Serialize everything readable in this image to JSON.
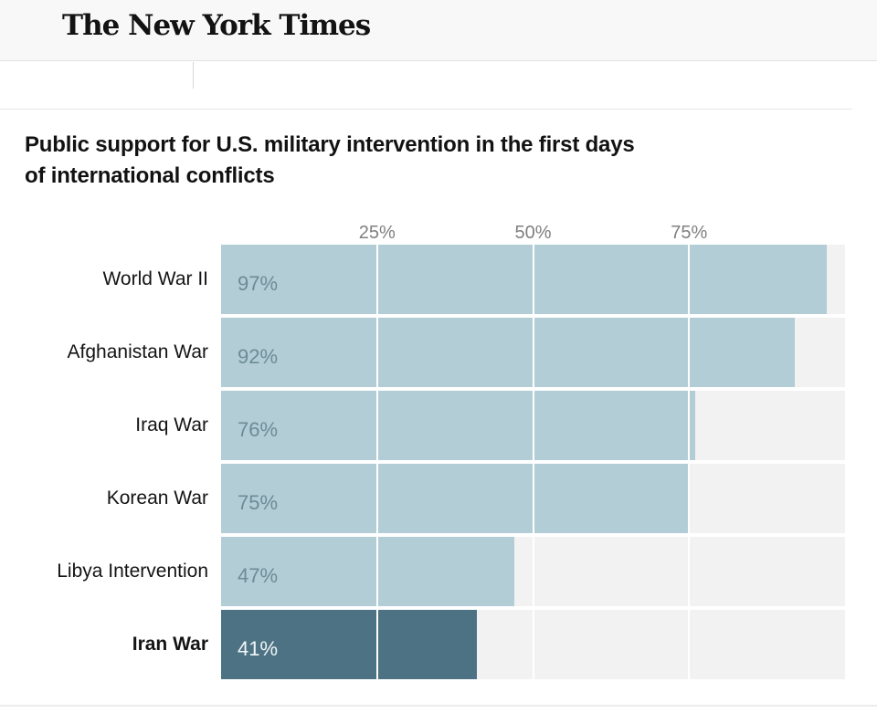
{
  "header": {
    "logo_text": "The New York Times"
  },
  "title": {
    "line1": "Public support for U.S. military intervention in the first days",
    "line2": "of international conflicts"
  },
  "chart_data": {
    "type": "bar",
    "orientation": "horizontal",
    "title": "Public support for U.S. military intervention in the first days of international conflicts",
    "categories": [
      "World War II",
      "Afghanistan War",
      "Iraq War",
      "Korean War",
      "Libya Intervention",
      "Iran War"
    ],
    "values": [
      97,
      92,
      76,
      75,
      47,
      41
    ],
    "value_labels": [
      "97%",
      "92%",
      "76%",
      "75%",
      "47%",
      "41%"
    ],
    "highlighted_category": "Iran War",
    "x_ticks": [
      {
        "value": 25,
        "label": "25%"
      },
      {
        "value": 50,
        "label": "50%"
      },
      {
        "value": 75,
        "label": "75%"
      }
    ],
    "xlim": [
      0,
      100
    ],
    "grid": true,
    "colors": {
      "bar": "#b2cdd6",
      "bar_highlight": "#4d7284",
      "track": "#f2f2f2",
      "value_label": "#6d8b96",
      "value_label_highlight": "#f2f7f8",
      "gridline": "#ffffff",
      "tick_label": "#808080"
    }
  }
}
